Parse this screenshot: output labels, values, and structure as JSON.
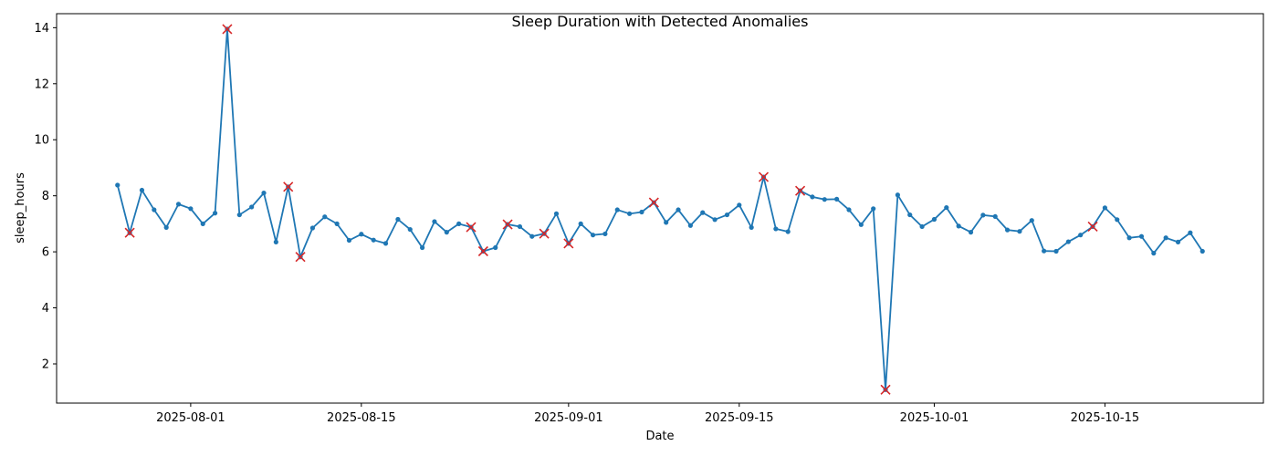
{
  "chart_data": {
    "type": "line",
    "title": "Sleep Duration with Detected Anomalies",
    "xlabel": "Date",
    "ylabel": "sleep_hours",
    "x_start_date": "2025-07-26",
    "x_tick_dates": [
      "2025-08-01",
      "2025-08-15",
      "2025-09-01",
      "2025-09-15",
      "2025-10-01",
      "2025-10-15"
    ],
    "x_tick_labels": [
      "2025-08-01",
      "2025-08-15",
      "2025-09-01",
      "2025-09-15",
      "2025-10-01",
      "2025-10-15"
    ],
    "y_ticks": [
      2,
      4,
      6,
      8,
      10,
      12,
      14
    ],
    "ylim": [
      0.6,
      14.5
    ],
    "xlim": [
      "2025-07-21",
      "2025-10-28"
    ],
    "grid": false,
    "series": [
      {
        "name": "sleep_hours",
        "color": "#1f77b4",
        "marker": "point",
        "values": [
          8.38,
          6.68,
          8.2,
          7.5,
          6.87,
          7.7,
          7.54,
          7.0,
          7.38,
          13.95,
          7.32,
          7.6,
          8.1,
          6.35,
          8.32,
          5.82,
          6.85,
          7.25,
          7.0,
          6.41,
          6.63,
          6.42,
          6.3,
          7.16,
          6.8,
          6.15,
          7.08,
          6.7,
          7.0,
          6.88,
          6.02,
          6.15,
          6.98,
          6.9,
          6.55,
          6.65,
          7.36,
          6.3,
          7.0,
          6.6,
          6.64,
          7.5,
          7.36,
          7.42,
          7.76,
          7.05,
          7.5,
          6.94,
          7.4,
          7.15,
          7.32,
          7.67,
          6.87,
          8.67,
          6.82,
          6.72,
          8.18,
          7.96,
          7.87,
          7.88,
          7.5,
          6.97,
          7.54,
          1.08,
          8.03,
          7.32,
          6.9,
          7.16,
          7.58,
          6.92,
          6.7,
          7.31,
          7.26,
          6.78,
          6.73,
          7.12,
          6.03,
          6.02,
          6.36,
          6.6,
          6.9,
          7.57,
          7.15,
          6.5,
          6.55,
          5.95,
          6.5,
          6.35,
          6.68,
          6.02
        ]
      },
      {
        "name": "anomalies",
        "color": "#d62728",
        "marker": "x",
        "indices": [
          1,
          9,
          14,
          15,
          29,
          30,
          32,
          35,
          37,
          44,
          53,
          56,
          63,
          80
        ]
      }
    ]
  }
}
